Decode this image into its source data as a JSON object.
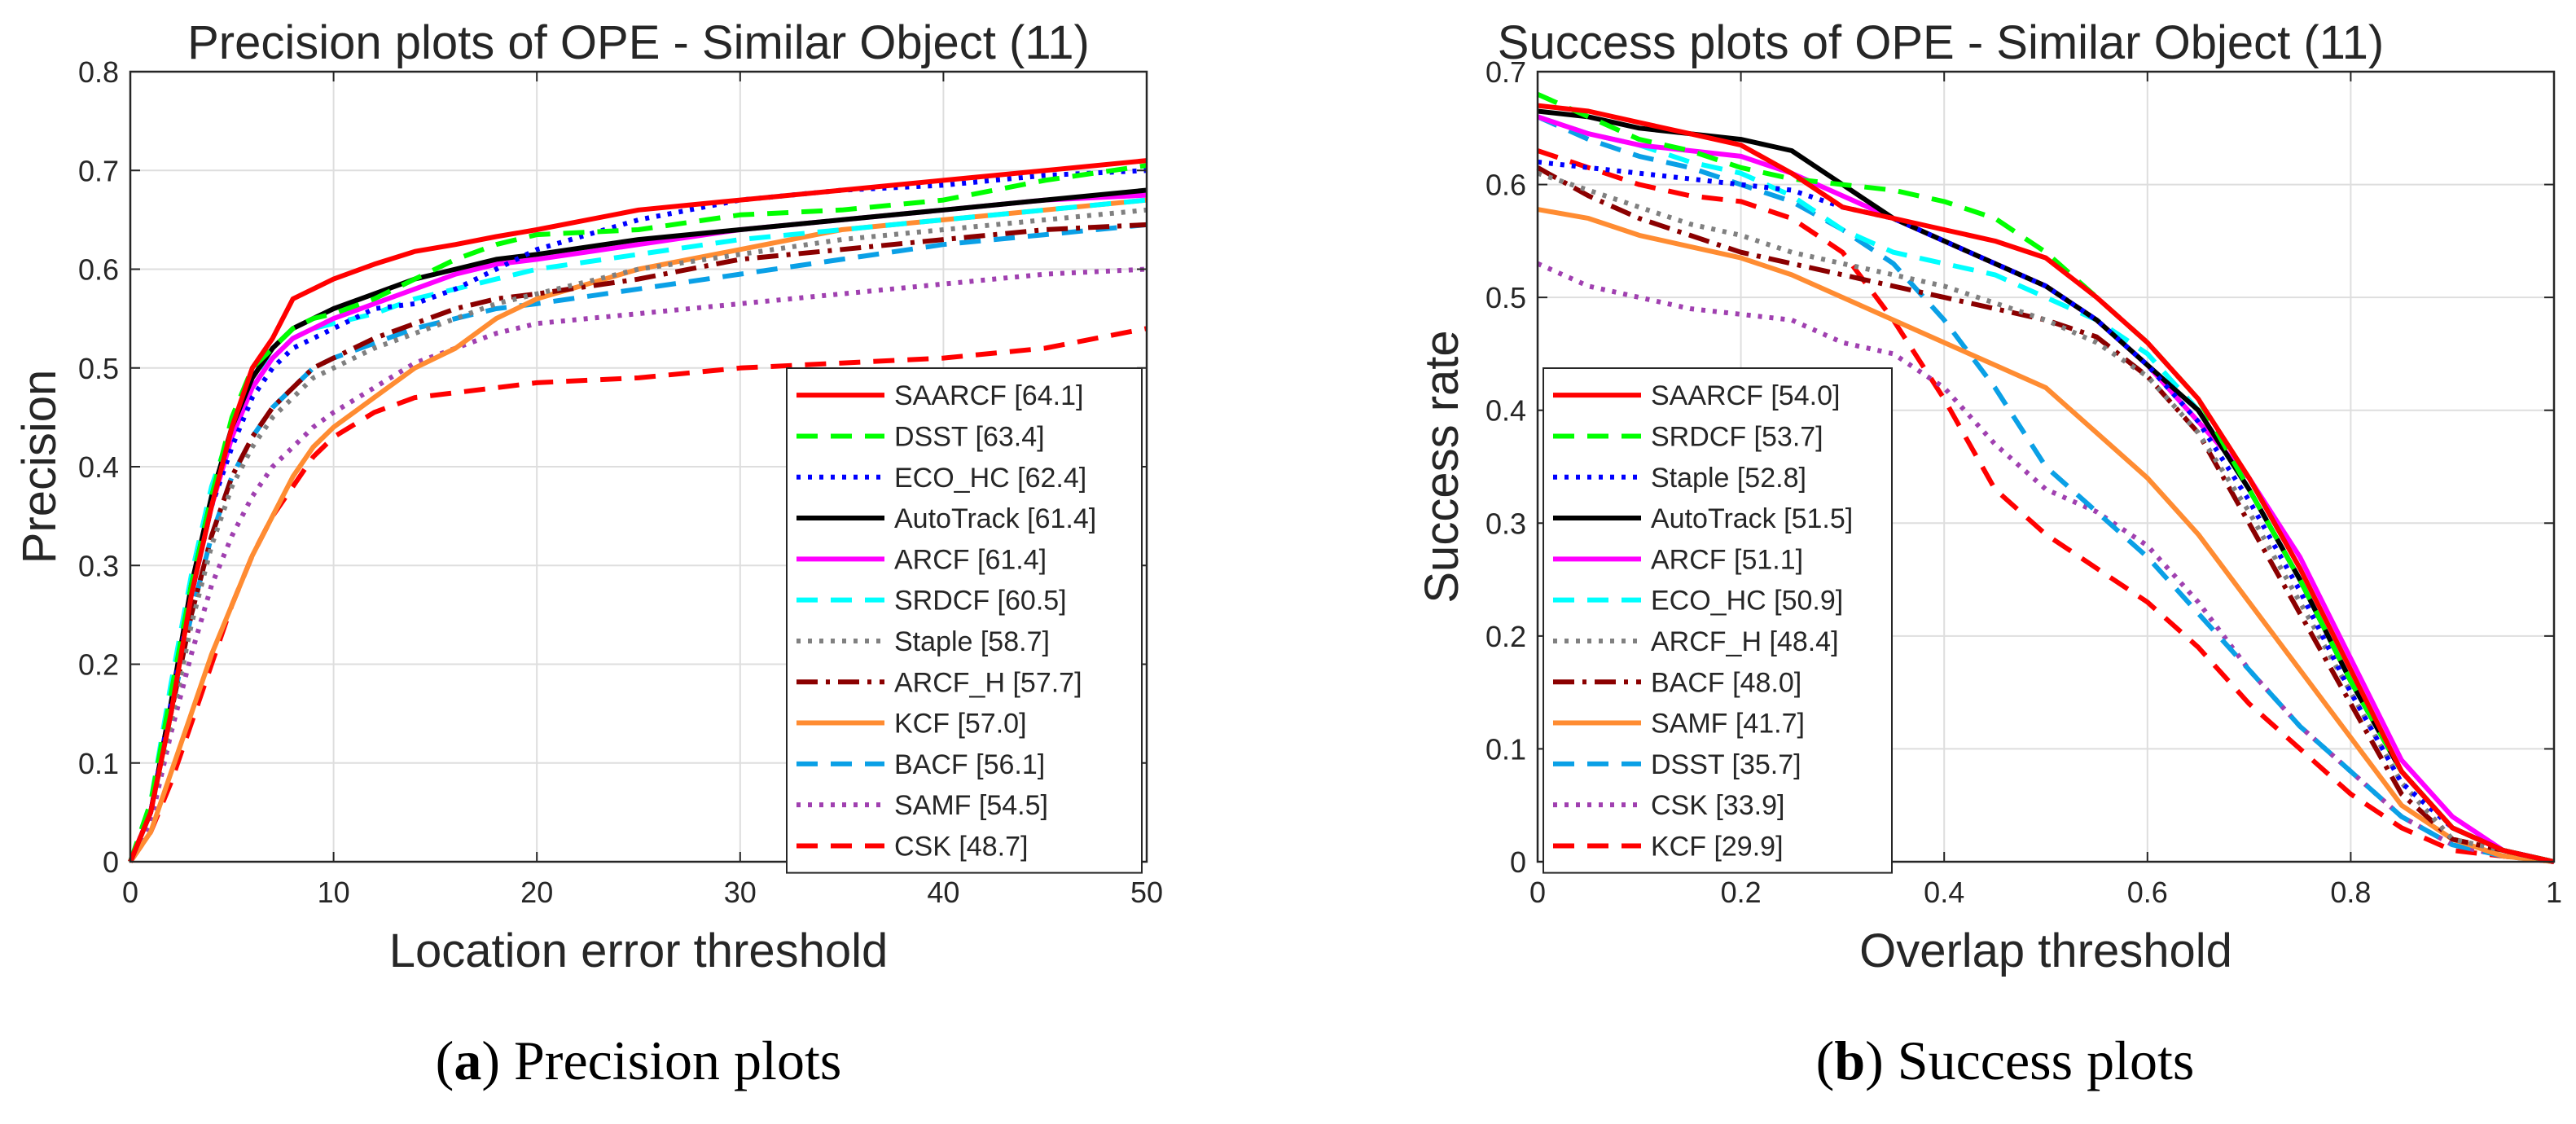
{
  "colors": {
    "red": "#ff0000",
    "green": "#00ff00",
    "blue": "#0000ff",
    "black": "#000000",
    "magenta": "#ff00ff",
    "cyan": "#00ffff",
    "gray": "#808080",
    "darkred": "#8b0000",
    "orange": "#ff8c32",
    "lightblue": "#0aa0e6",
    "purple": "#a040b0"
  },
  "captions": {
    "a_label": "a",
    "a_text": "Precision plots",
    "b_label": "b",
    "b_text": "Success plots"
  },
  "chart_data": [
    {
      "type": "line",
      "title": "Precision plots of OPE - Similar Object (11)",
      "xlabel": "Location error threshold",
      "ylabel": "Precision",
      "xlim": [
        0,
        50
      ],
      "ylim": [
        0,
        0.8
      ],
      "xticks": [
        0,
        10,
        20,
        30,
        40,
        50
      ],
      "xtick_labels": [
        "0",
        "10",
        "20",
        "30",
        "40",
        "50"
      ],
      "yticks": [
        0,
        0.1,
        0.2,
        0.3,
        0.4,
        0.5,
        0.6,
        0.7,
        0.8
      ],
      "ytick_labels": [
        "0",
        "0.1",
        "0.2",
        "0.3",
        "0.4",
        "0.5",
        "0.6",
        "0.7",
        "0.8"
      ],
      "grid": true,
      "legend_position": "bottom-right",
      "x": [
        0,
        1,
        2,
        3,
        4,
        5,
        6,
        7,
        8,
        9,
        10,
        12,
        14,
        16,
        18,
        20,
        25,
        30,
        35,
        40,
        45,
        50
      ],
      "series": [
        {
          "name": "SAARCF [64.1]",
          "color": "red",
          "dash": "solid",
          "values": [
            0,
            0.05,
            0.15,
            0.27,
            0.36,
            0.44,
            0.5,
            0.53,
            0.57,
            0.58,
            0.59,
            0.605,
            0.618,
            0.625,
            0.633,
            0.64,
            0.66,
            0.67,
            0.68,
            0.69,
            0.7,
            0.71
          ]
        },
        {
          "name": "DSST [63.4]",
          "color": "green",
          "dash": "dashed",
          "values": [
            0,
            0.06,
            0.17,
            0.28,
            0.37,
            0.45,
            0.5,
            0.52,
            0.54,
            0.55,
            0.555,
            0.57,
            0.59,
            0.61,
            0.625,
            0.635,
            0.64,
            0.655,
            0.66,
            0.67,
            0.69,
            0.705
          ]
        },
        {
          "name": "ECO_HC [62.4]",
          "color": "blue",
          "dash": "dotted",
          "values": [
            0,
            0.05,
            0.16,
            0.27,
            0.36,
            0.42,
            0.47,
            0.5,
            0.52,
            0.53,
            0.54,
            0.56,
            0.565,
            0.58,
            0.6,
            0.62,
            0.65,
            0.67,
            0.68,
            0.685,
            0.695,
            0.7
          ]
        },
        {
          "name": "AutoTrack [61.4]",
          "color": "black",
          "dash": "solid",
          "values": [
            0,
            0.05,
            0.16,
            0.28,
            0.37,
            0.44,
            0.49,
            0.52,
            0.54,
            0.55,
            0.56,
            0.575,
            0.59,
            0.6,
            0.61,
            0.615,
            0.63,
            0.64,
            0.65,
            0.66,
            0.67,
            0.68
          ]
        },
        {
          "name": "ARCF [61.4]",
          "color": "magenta",
          "dash": "solid",
          "values": [
            0,
            0.05,
            0.16,
            0.27,
            0.36,
            0.43,
            0.48,
            0.51,
            0.53,
            0.54,
            0.55,
            0.565,
            0.58,
            0.595,
            0.605,
            0.61,
            0.625,
            0.64,
            0.65,
            0.66,
            0.67,
            0.675
          ]
        },
        {
          "name": "SRDCF [60.5]",
          "color": "cyan",
          "dash": "dashed",
          "values": [
            0,
            0.06,
            0.18,
            0.29,
            0.38,
            0.44,
            0.49,
            0.51,
            0.53,
            0.54,
            0.545,
            0.555,
            0.57,
            0.58,
            0.59,
            0.6,
            0.615,
            0.63,
            0.64,
            0.65,
            0.66,
            0.67
          ]
        },
        {
          "name": "Staple [58.7]",
          "color": "gray",
          "dash": "dotted",
          "values": [
            0,
            0.05,
            0.14,
            0.24,
            0.32,
            0.38,
            0.42,
            0.45,
            0.47,
            0.49,
            0.5,
            0.52,
            0.535,
            0.55,
            0.565,
            0.575,
            0.6,
            0.615,
            0.63,
            0.64,
            0.65,
            0.66
          ]
        },
        {
          "name": "ARCF_H [57.7]",
          "color": "darkred",
          "dash": "dashdot",
          "values": [
            0,
            0.05,
            0.15,
            0.25,
            0.33,
            0.39,
            0.43,
            0.46,
            0.48,
            0.5,
            0.51,
            0.53,
            0.545,
            0.56,
            0.57,
            0.575,
            0.59,
            0.61,
            0.62,
            0.63,
            0.64,
            0.645
          ]
        },
        {
          "name": "KCF [57.0]",
          "color": "orange",
          "dash": "solid",
          "values": [
            0,
            0.03,
            0.09,
            0.15,
            0.21,
            0.26,
            0.31,
            0.35,
            0.39,
            0.42,
            0.44,
            0.47,
            0.5,
            0.52,
            0.55,
            0.57,
            0.6,
            0.62,
            0.64,
            0.65,
            0.66,
            0.67
          ]
        },
        {
          "name": "BACF [56.1]",
          "color": "lightblue",
          "dash": "dashed",
          "values": [
            0,
            0.05,
            0.15,
            0.25,
            0.33,
            0.39,
            0.43,
            0.46,
            0.48,
            0.5,
            0.51,
            0.525,
            0.54,
            0.55,
            0.56,
            0.565,
            0.58,
            0.595,
            0.61,
            0.625,
            0.635,
            0.645
          ]
        },
        {
          "name": "SAMF [54.5]",
          "color": "purple",
          "dash": "dotted",
          "values": [
            0,
            0.04,
            0.13,
            0.21,
            0.28,
            0.33,
            0.37,
            0.4,
            0.42,
            0.44,
            0.455,
            0.48,
            0.505,
            0.52,
            0.535,
            0.545,
            0.555,
            0.565,
            0.575,
            0.585,
            0.595,
            0.6
          ]
        },
        {
          "name": "CSK [48.7]",
          "color": "red",
          "dash": "dashed",
          "values": [
            0,
            0.03,
            0.08,
            0.14,
            0.2,
            0.26,
            0.31,
            0.35,
            0.38,
            0.41,
            0.43,
            0.455,
            0.47,
            0.475,
            0.48,
            0.485,
            0.49,
            0.5,
            0.505,
            0.51,
            0.52,
            0.54
          ]
        }
      ]
    },
    {
      "type": "line",
      "title": "Success plots of OPE - Similar Object (11)",
      "xlabel": "Overlap threshold",
      "ylabel": "Success rate",
      "xlim": [
        0,
        1
      ],
      "ylim": [
        0,
        0.7
      ],
      "xticks": [
        0,
        0.2,
        0.4,
        0.6,
        0.8,
        1
      ],
      "xtick_labels": [
        "0",
        "0.2",
        "0.4",
        "0.6",
        "0.8",
        "1"
      ],
      "yticks": [
        0,
        0.1,
        0.2,
        0.3,
        0.4,
        0.5,
        0.6,
        0.7
      ],
      "ytick_labels": [
        "0",
        "0.1",
        "0.2",
        "0.3",
        "0.4",
        "0.5",
        "0.6",
        "0.7"
      ],
      "grid": true,
      "legend_position": "bottom-left",
      "x": [
        0,
        0.05,
        0.1,
        0.15,
        0.2,
        0.25,
        0.3,
        0.35,
        0.4,
        0.45,
        0.5,
        0.55,
        0.6,
        0.65,
        0.7,
        0.75,
        0.8,
        0.85,
        0.9,
        0.95,
        1
      ],
      "series": [
        {
          "name": "SAARCF [54.0]",
          "color": "red",
          "dash": "solid",
          "values": [
            0.67,
            0.665,
            0.655,
            0.645,
            0.635,
            0.61,
            0.58,
            0.57,
            0.56,
            0.55,
            0.535,
            0.5,
            0.46,
            0.41,
            0.34,
            0.26,
            0.17,
            0.08,
            0.03,
            0.01,
            0
          ]
        },
        {
          "name": "SRDCF [53.7]",
          "color": "green",
          "dash": "dashed",
          "values": [
            0.68,
            0.66,
            0.64,
            0.63,
            0.615,
            0.605,
            0.6,
            0.595,
            0.585,
            0.57,
            0.54,
            0.5,
            0.46,
            0.41,
            0.33,
            0.25,
            0.16,
            0.08,
            0.03,
            0.01,
            0
          ]
        },
        {
          "name": "Staple [52.8]",
          "color": "blue",
          "dash": "dotted",
          "values": [
            0.62,
            0.615,
            0.61,
            0.605,
            0.6,
            0.595,
            0.58,
            0.57,
            0.55,
            0.53,
            0.51,
            0.48,
            0.44,
            0.39,
            0.32,
            0.24,
            0.15,
            0.07,
            0.03,
            0.01,
            0
          ]
        },
        {
          "name": "AutoTrack [51.5]",
          "color": "black",
          "dash": "solid",
          "values": [
            0.665,
            0.66,
            0.65,
            0.645,
            0.64,
            0.63,
            0.6,
            0.57,
            0.55,
            0.53,
            0.51,
            0.48,
            0.44,
            0.4,
            0.33,
            0.25,
            0.16,
            0.08,
            0.03,
            0.01,
            0
          ]
        },
        {
          "name": "ARCF [51.1]",
          "color": "magenta",
          "dash": "solid",
          "values": [
            0.66,
            0.645,
            0.635,
            0.63,
            0.625,
            0.61,
            0.59,
            0.57,
            0.55,
            0.53,
            0.51,
            0.48,
            0.44,
            0.39,
            0.34,
            0.27,
            0.18,
            0.09,
            0.04,
            0.01,
            0
          ]
        },
        {
          "name": "ECO_HC [50.9]",
          "color": "cyan",
          "dash": "dashed",
          "values": [
            0.66,
            0.645,
            0.635,
            0.62,
            0.61,
            0.59,
            0.56,
            0.54,
            0.53,
            0.52,
            0.5,
            0.48,
            0.45,
            0.4,
            0.33,
            0.25,
            0.16,
            0.08,
            0.03,
            0.01,
            0
          ]
        },
        {
          "name": "ARCF_H [48.4]",
          "color": "gray",
          "dash": "dotted",
          "values": [
            0.61,
            0.595,
            0.58,
            0.565,
            0.555,
            0.54,
            0.53,
            0.52,
            0.51,
            0.495,
            0.48,
            0.46,
            0.43,
            0.38,
            0.31,
            0.23,
            0.15,
            0.07,
            0.02,
            0.01,
            0
          ]
        },
        {
          "name": "BACF [48.0]",
          "color": "darkred",
          "dash": "dashdot",
          "values": [
            0.615,
            0.59,
            0.57,
            0.555,
            0.54,
            0.53,
            0.52,
            0.51,
            0.5,
            0.49,
            0.48,
            0.465,
            0.43,
            0.38,
            0.3,
            0.22,
            0.14,
            0.06,
            0.02,
            0.01,
            0
          ]
        },
        {
          "name": "SAMF [41.7]",
          "color": "orange",
          "dash": "solid",
          "values": [
            0.578,
            0.57,
            0.555,
            0.545,
            0.535,
            0.52,
            0.5,
            0.48,
            0.46,
            0.44,
            0.42,
            0.38,
            0.34,
            0.29,
            0.23,
            0.17,
            0.11,
            0.05,
            0.02,
            0.005,
            0
          ]
        },
        {
          "name": "DSST [35.7]",
          "color": "lightblue",
          "dash": "dashed",
          "values": [
            0.66,
            0.64,
            0.625,
            0.615,
            0.6,
            0.585,
            0.56,
            0.53,
            0.48,
            0.42,
            0.35,
            0.31,
            0.27,
            0.22,
            0.17,
            0.12,
            0.08,
            0.04,
            0.015,
            0.005,
            0
          ]
        },
        {
          "name": "CSK [33.9]",
          "color": "purple",
          "dash": "dotted",
          "values": [
            0.53,
            0.51,
            0.5,
            0.49,
            0.485,
            0.48,
            0.46,
            0.45,
            0.42,
            0.37,
            0.33,
            0.31,
            0.28,
            0.23,
            0.17,
            0.12,
            0.08,
            0.04,
            0.015,
            0.005,
            0
          ]
        },
        {
          "name": "KCF [29.9]",
          "color": "red",
          "dash": "dashed",
          "values": [
            0.63,
            0.615,
            0.6,
            0.59,
            0.585,
            0.57,
            0.54,
            0.48,
            0.41,
            0.33,
            0.29,
            0.26,
            0.23,
            0.19,
            0.14,
            0.1,
            0.06,
            0.03,
            0.01,
            0.005,
            0
          ]
        }
      ]
    }
  ]
}
